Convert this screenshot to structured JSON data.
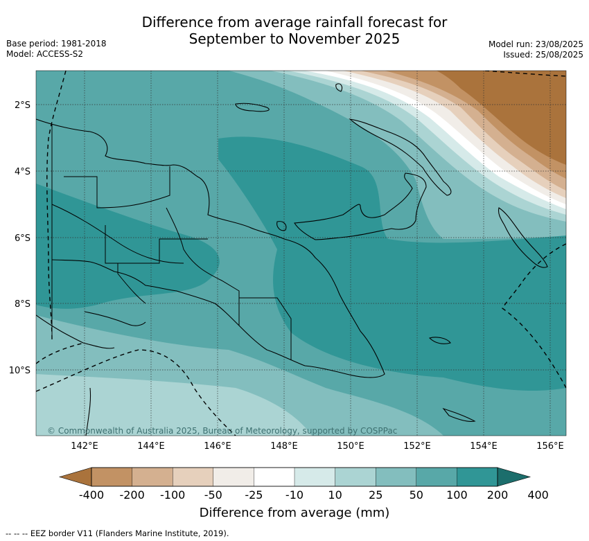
{
  "header": {
    "title_line1": "Difference from average rainfall forecast for",
    "title_line2": "September to November 2025",
    "base_period": "Base period: 1981-2018",
    "model": "Model: ACCESS-S2",
    "model_run": "Model run: 23/08/2025",
    "issued": "Issued: 25/08/2025"
  },
  "map": {
    "lat_labels": [
      "2°S",
      "4°S",
      "6°S",
      "8°S",
      "10°S"
    ],
    "lon_labels": [
      "142°E",
      "144°E",
      "146°E",
      "148°E",
      "150°E",
      "152°E",
      "154°E",
      "156°E"
    ],
    "copyright": "© Commonwealth of Australia 2025, Bureau of Meteorology, supported by COSPPac"
  },
  "colorbar": {
    "ticks": [
      "-400",
      "-200",
      "-100",
      "-50",
      "-25",
      "-10",
      "10",
      "25",
      "50",
      "100",
      "200",
      "400"
    ],
    "colors": [
      "#aa733c",
      "#c29264",
      "#d4b090",
      "#e6d0bc",
      "#f1ede8",
      "#ffffff",
      "#d6eae9",
      "#abd4d3",
      "#83bebe",
      "#58a8a8",
      "#309696",
      "#1c6e6c"
    ],
    "label": "Difference from average (mm)"
  },
  "legend": {
    "eez_text": "--  --  -- EEZ border V11 (Flanders Marine Institute, 2019)."
  }
}
